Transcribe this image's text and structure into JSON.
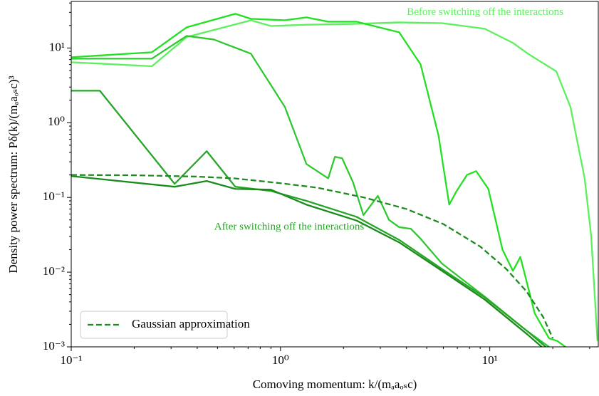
{
  "chart_data": {
    "type": "line",
    "xlabel": "Comoving momentum: k/(mₐaₒₛc)",
    "ylabel": "Density power spectrum: Pδ(k)/(mₐaₒₛc)³",
    "xscale": "log",
    "yscale": "log",
    "xlim": [
      0.1,
      33
    ],
    "ylim": [
      0.001,
      42
    ],
    "xticks": [
      {
        "value": 0.1,
        "label": "10⁻¹"
      },
      {
        "value": 1,
        "label": "10⁰"
      },
      {
        "value": 10,
        "label": "10¹"
      }
    ],
    "yticks": [
      {
        "value": 0.001,
        "label": "10⁻³"
      },
      {
        "value": 0.01,
        "label": "10⁻²"
      },
      {
        "value": 0.1,
        "label": "10⁻¹"
      },
      {
        "value": 1,
        "label": "10⁰"
      },
      {
        "value": 10,
        "label": "10¹"
      }
    ],
    "legend": "lower left",
    "series": [
      {
        "color": "#5cf05c",
        "x": [
          0.1,
          0.243,
          0.356,
          0.722,
          0.9,
          1.33,
          2.22,
          3.69,
          5.91,
          9.46,
          12.9,
          15.2,
          20.8,
          24.3,
          28.4,
          30.5,
          32.7
        ],
        "values": [
          6.45,
          5.7,
          14,
          23.5,
          19.7,
          20.5,
          21,
          22,
          21.5,
          18.1,
          11.7,
          8.4,
          4.86,
          1.62,
          0.18,
          0.031,
          0.0012
        ]
      },
      {
        "color": "#22e022",
        "x": [
          0.1,
          0.243,
          0.356,
          0.608,
          0.722,
          1.05,
          1.33,
          1.69,
          2.31,
          3.69,
          4.67,
          5.69,
          6.4,
          6.92,
          7.78,
          8.61,
          9.84,
          11.5,
          12.9,
          14.0,
          16.4,
          19.2,
          21,
          23
        ],
        "values": [
          7.52,
          8.77,
          18.9,
          28.7,
          24.6,
          23.5,
          25.7,
          22.5,
          22.5,
          16.2,
          6.04,
          0.674,
          0.08,
          0.12,
          0.2,
          0.225,
          0.13,
          0.02,
          0.0104,
          0.016,
          0.0028,
          0.0013,
          0.0012,
          0.001
        ]
      },
      {
        "color": "#30c830",
        "x": [
          0.1,
          0.243,
          0.356,
          0.48,
          0.722,
          1.05,
          1.33,
          1.69,
          1.82,
          1.97,
          2.22,
          2.49,
          2.92,
          3.3,
          3.69,
          4.2,
          4.67,
          5.91,
          9.46,
          15.2,
          19.2
        ],
        "values": [
          7.2,
          7.2,
          14.5,
          13.0,
          8.39,
          1.62,
          0.28,
          0.18,
          0.35,
          0.334,
          0.16,
          0.058,
          0.105,
          0.05,
          0.04,
          0.038,
          0.028,
          0.013,
          0.0047,
          0.0016,
          0.001
        ]
      },
      {
        "color": "#26a626",
        "x": [
          0.1,
          0.137,
          0.312,
          0.444,
          0.608,
          0.9,
          1.33,
          2.31,
          3.69,
          5.91,
          9.46,
          15.2,
          18.5
        ],
        "values": [
          2.68,
          2.68,
          0.152,
          0.416,
          0.139,
          0.122,
          0.09,
          0.055,
          0.027,
          0.011,
          0.0046,
          0.0016,
          0.001
        ]
      },
      {
        "color": "#1c8a1c",
        "x": [
          0.1,
          0.312,
          0.444,
          0.608,
          0.9,
          1.33,
          2.31,
          3.69,
          5.91,
          9.46,
          15.2,
          17.7
        ],
        "values": [
          0.193,
          0.139,
          0.166,
          0.13,
          0.127,
          0.08,
          0.049,
          0.025,
          0.0104,
          0.0043,
          0.00145,
          0.001
        ]
      },
      {
        "name": "Gaussian approximation",
        "color": "#1f8a1f",
        "dashed": true,
        "x": [
          0.1,
          0.2,
          0.4,
          0.6,
          1,
          1.5,
          2.5,
          4,
          6,
          9,
          12,
          15,
          18,
          20
        ],
        "values": [
          0.2,
          0.198,
          0.19,
          0.18,
          0.155,
          0.135,
          0.1,
          0.07,
          0.044,
          0.022,
          0.011,
          0.0055,
          0.0025,
          0.0013
        ]
      }
    ],
    "annotations": [
      {
        "text": "Before switching off the interactions",
        "x": 9.5,
        "y": 30,
        "color": "#5cf05c"
      },
      {
        "text": "After switching off the interactions",
        "x": 1.1,
        "y": 0.04,
        "color": "#26a626"
      }
    ]
  }
}
